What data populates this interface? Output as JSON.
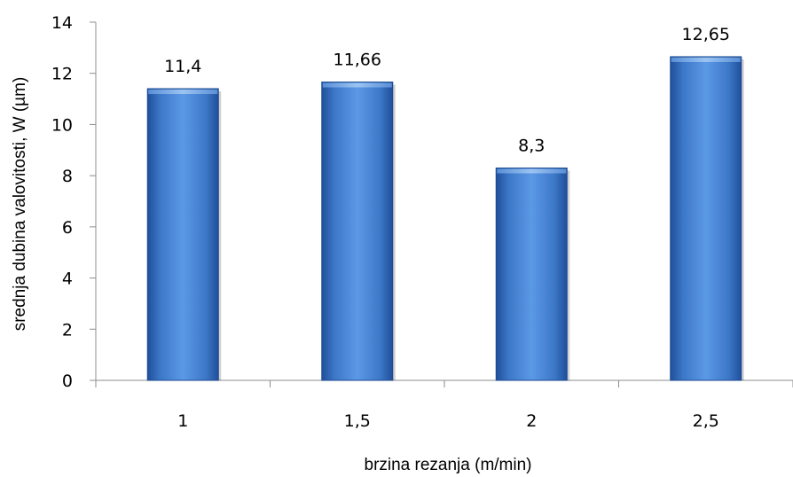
{
  "chart_data": {
    "type": "bar",
    "title": "",
    "xlabel": "brzina rezanja (m/min)",
    "ylabel": "srednja dubina valovitosti, W (µm)",
    "categories": [
      "1",
      "1,5",
      "2",
      "2,5"
    ],
    "values": [
      11.4,
      11.66,
      8.3,
      12.65
    ],
    "data_labels": [
      "11,4",
      "11,66",
      "8,3",
      "12,65"
    ],
    "ylim": [
      0,
      14
    ],
    "yticks": [
      0,
      2,
      4,
      6,
      8,
      10,
      12,
      14
    ],
    "grid": false,
    "legend": "none",
    "bar_color": "#4a86d8"
  }
}
